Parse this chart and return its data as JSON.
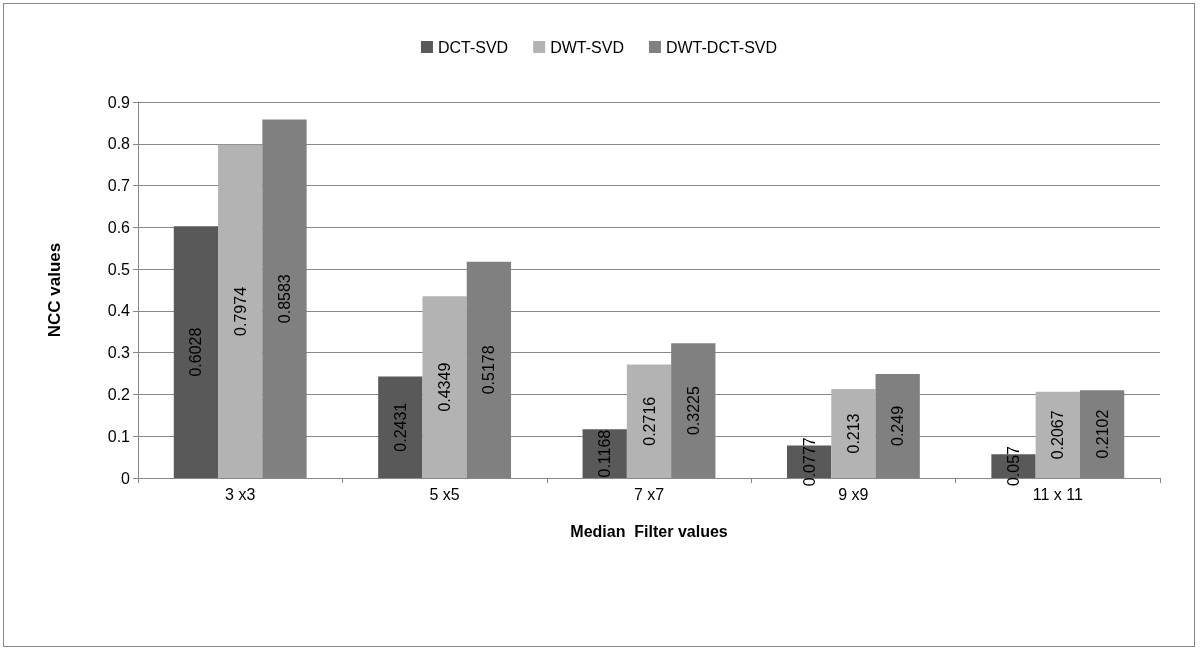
{
  "chart_data": {
    "type": "bar",
    "xlabel": "Median  Filter values",
    "ylabel": "NCC values",
    "categories": [
      "3 x3",
      "5 x5",
      "7 x7",
      "9 x9",
      "11 x 11"
    ],
    "series": [
      {
        "name": "DCT-SVD",
        "color": "#595959",
        "values": [
          0.6028,
          0.2431,
          0.1168,
          0.0777,
          0.057
        ]
      },
      {
        "name": "DWT-SVD",
        "color": "#b3b3b3",
        "values": [
          0.7974,
          0.4349,
          0.2716,
          0.213,
          0.2067
        ]
      },
      {
        "name": "DWT-DCT-SVD",
        "color": "#808080",
        "values": [
          0.8583,
          0.5178,
          0.3225,
          0.249,
          0.2102
        ]
      }
    ],
    "ylim": [
      0,
      0.9
    ],
    "yticks": [
      0,
      0.1,
      0.2,
      0.3,
      0.4,
      0.5,
      0.6,
      0.7,
      0.8,
      0.9
    ],
    "grid": "y",
    "legend": "top",
    "data_labels": true
  }
}
